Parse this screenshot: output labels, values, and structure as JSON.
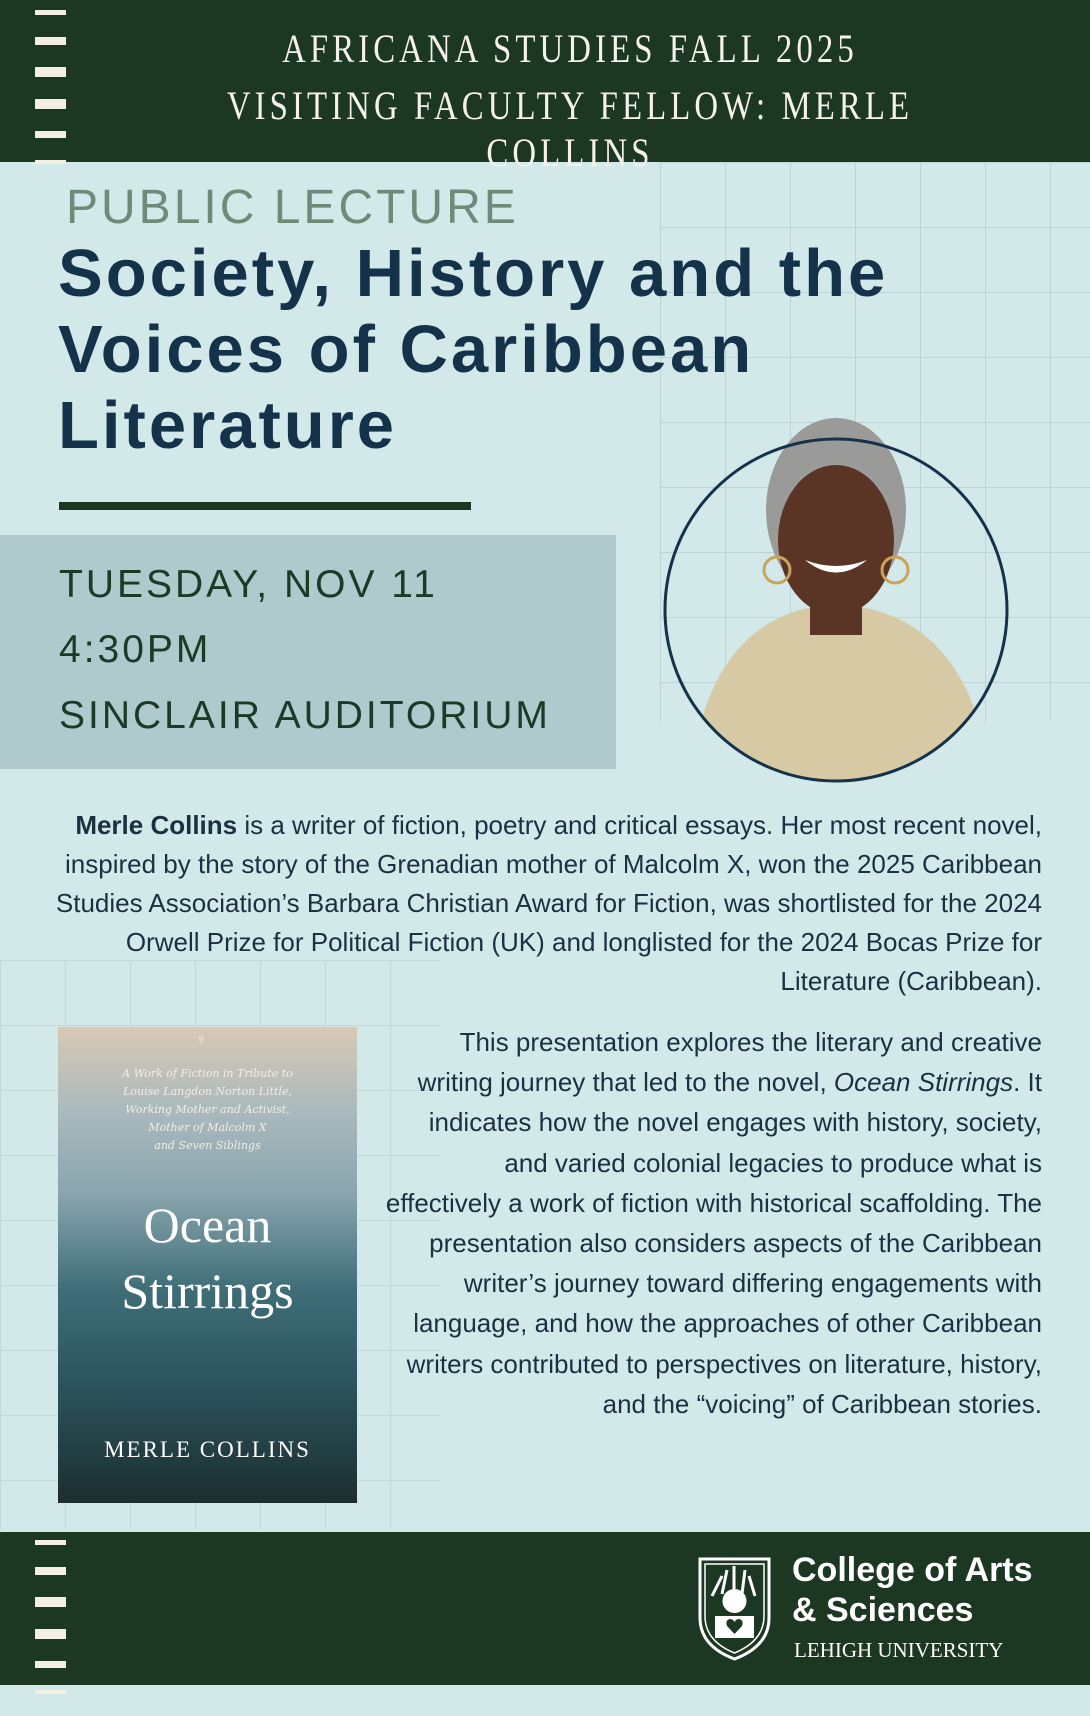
{
  "header": {
    "line1": "AFRICANA STUDIES FALL 2025",
    "line2": "VISITING FACULTY FELLOW: MERLE COLLINS"
  },
  "event": {
    "kicker": "PUBLIC LECTURE",
    "title_lines": [
      "Society, History and the",
      "Voices of Caribbean",
      "Literature"
    ],
    "date": "TUESDAY, NOV 11",
    "time": "4:30PM",
    "location": "SINCLAIR AUDITORIUM"
  },
  "bio": {
    "name": "Merle Collins",
    "text": " is a writer of fiction, poetry and critical essays. Her most recent novel, inspired by the story of the Grenadian mother of Malcolm X, won the 2025 Caribbean Studies Association’s Barbara Christian Award for Fiction, was shortlisted for the 2024 Orwell Prize for Political Fiction (UK) and longlisted for the 2024 Bocas Prize for Literature (Caribbean)."
  },
  "description": {
    "before": "This presentation explores the literary and creative writing journey that led to the novel, ",
    "book_title": "Ocean Stirrings",
    "after": ". It indicates how the novel engages with history, society, and varied colonial legacies to produce what is effectively a work of fiction with historical scaffolding. The presentation also considers aspects of the Caribbean writer’s journey toward differing engagements with language, and how the approaches of other Caribbean writers contributed to perspectives on literature, history, and the “voicing” of Caribbean stories."
  },
  "book_cover": {
    "subtitle": [
      "A Work of Fiction in Tribute to",
      "Louise Langdon Norton Little,",
      "Working Mother and Activist,",
      "Mother of Malcolm X",
      "and Seven Siblings"
    ],
    "title_lines": [
      "Ocean",
      "Stirrings"
    ],
    "author": "MERLE COLLINS"
  },
  "footer": {
    "college_line1": "College of Arts",
    "college_line2": "& Sciences",
    "university": "LEHIGH UNIVERSITY"
  },
  "colors": {
    "band": "#1c3822",
    "background": "#d2e8e9",
    "title": "#14324a",
    "date_box": "#b0c9cd"
  }
}
